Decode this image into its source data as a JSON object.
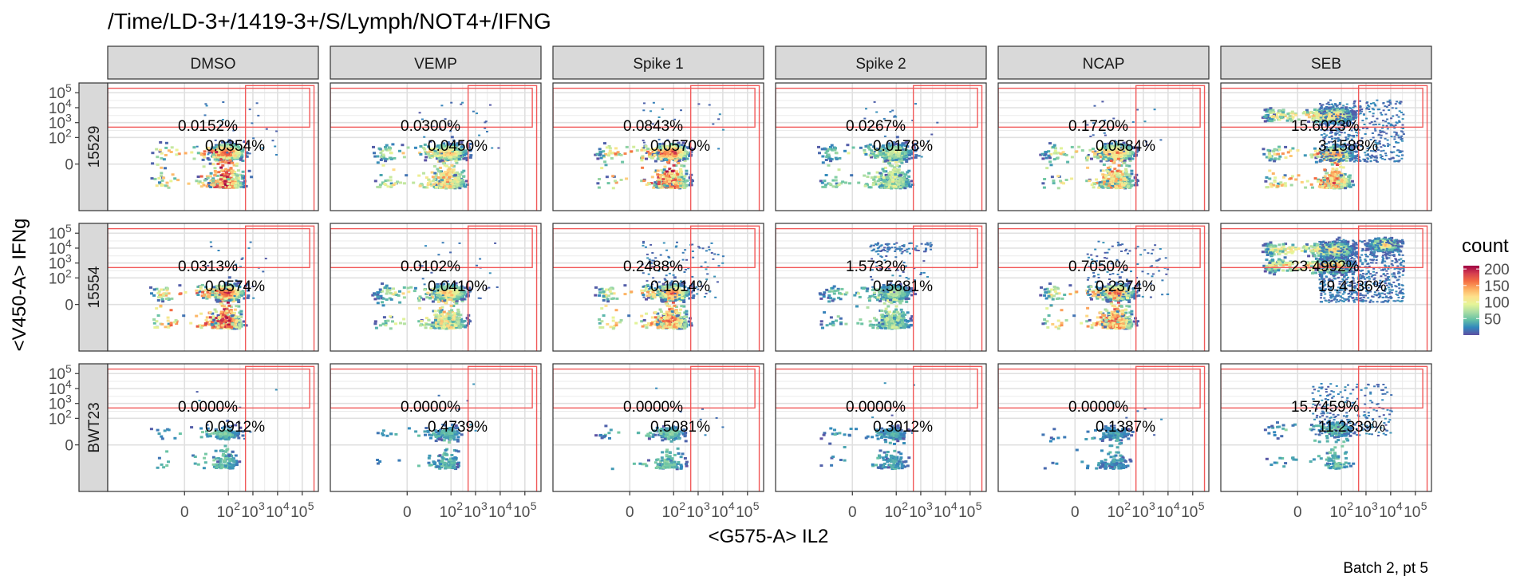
{
  "title": "/Time/LD-3+/1419-3+/S/Lymph/NOT4+/IFNG",
  "caption": "Batch 2, pt 5",
  "chart_data": {
    "type": "heatmap",
    "subtype": "faceted flow-cytometry density plot (biexponential axes) with quadrant gate",
    "title": "/Time/LD-3+/1419-3+/S/Lymph/NOT4+/IFNG",
    "xlabel": "<G575-A> IL2",
    "ylabel": "<V450-A> IFNg",
    "x_tick_labels": [
      "0",
      "10",
      "10",
      "10",
      "10"
    ],
    "x_tick_exponents": [
      "",
      "2",
      "3",
      "4",
      "5"
    ],
    "y_tick_labels": [
      "0",
      "10",
      "10",
      "10",
      "10"
    ],
    "y_tick_exponents": [
      "",
      "2",
      "3",
      "4",
      "5"
    ],
    "columns": [
      "DMSO",
      "VEMP",
      "Spike 1",
      "Spike 2",
      "NCAP",
      "SEB"
    ],
    "rows": [
      "15529",
      "15554",
      "BWT23"
    ],
    "gate": {
      "x_threshold": 500,
      "y_threshold": 500,
      "x_max": 200000,
      "y_max": 200000
    },
    "legend": {
      "title": "count",
      "ticks": [
        "50",
        "100",
        "150",
        "200"
      ],
      "range": [
        0,
        210
      ],
      "position": "right",
      "colors": [
        "#5e4fa2",
        "#3288bd",
        "#66c2a5",
        "#abdda4",
        "#e6f598",
        "#fee08b",
        "#fdae61",
        "#f46d43",
        "#d53e4f",
        "#9e0142"
      ]
    },
    "grid": true,
    "panels": [
      [
        {
          "upper": "0.0152%",
          "lower": "0.0354%",
          "density": "low",
          "hot": 205
        },
        {
          "upper": "0.0300%",
          "lower": "0.0450%",
          "density": "low",
          "hot": 150
        },
        {
          "upper": "0.0843%",
          "lower": "0.0570%",
          "density": "low",
          "hot": 205
        },
        {
          "upper": "0.0267%",
          "lower": "0.0178%",
          "density": "low",
          "hot": 100
        },
        {
          "upper": "0.1720%",
          "lower": "0.0584%",
          "density": "low",
          "hot": 165
        },
        {
          "upper": "15.6023%",
          "lower": "3.1588%",
          "density": "seb1",
          "hot": 175
        }
      ],
      [
        {
          "upper": "0.0313%",
          "lower": "0.0574%",
          "density": "low",
          "hot": 210
        },
        {
          "upper": "0.0102%",
          "lower": "0.0410%",
          "density": "low",
          "hot": 140
        },
        {
          "upper": "0.2488%",
          "lower": "0.1014%",
          "density": "mid",
          "hot": 180
        },
        {
          "upper": "1.5732%",
          "lower": "0.5681%",
          "density": "streak",
          "hot": 90
        },
        {
          "upper": "0.7050%",
          "lower": "0.2374%",
          "density": "mid",
          "hot": 185
        },
        {
          "upper": "23.4992%",
          "lower": "19.4136%",
          "density": "seb2",
          "hot": 160
        }
      ],
      [
        {
          "upper": "0.0000%",
          "lower": "0.0912%",
          "density": "tiny",
          "hot": 55
        },
        {
          "upper": "0.0000%",
          "lower": "0.4739%",
          "density": "tiny",
          "hot": 50
        },
        {
          "upper": "0.0000%",
          "lower": "0.5081%",
          "density": "tiny",
          "hot": 60
        },
        {
          "upper": "0.0000%",
          "lower": "0.3012%",
          "density": "tiny",
          "hot": 40
        },
        {
          "upper": "0.0000%",
          "lower": "0.1387%",
          "density": "tiny",
          "hot": 35
        },
        {
          "upper": "15.7459%",
          "lower": "11.2339%",
          "density": "seb3",
          "hot": 60
        }
      ]
    ]
  }
}
